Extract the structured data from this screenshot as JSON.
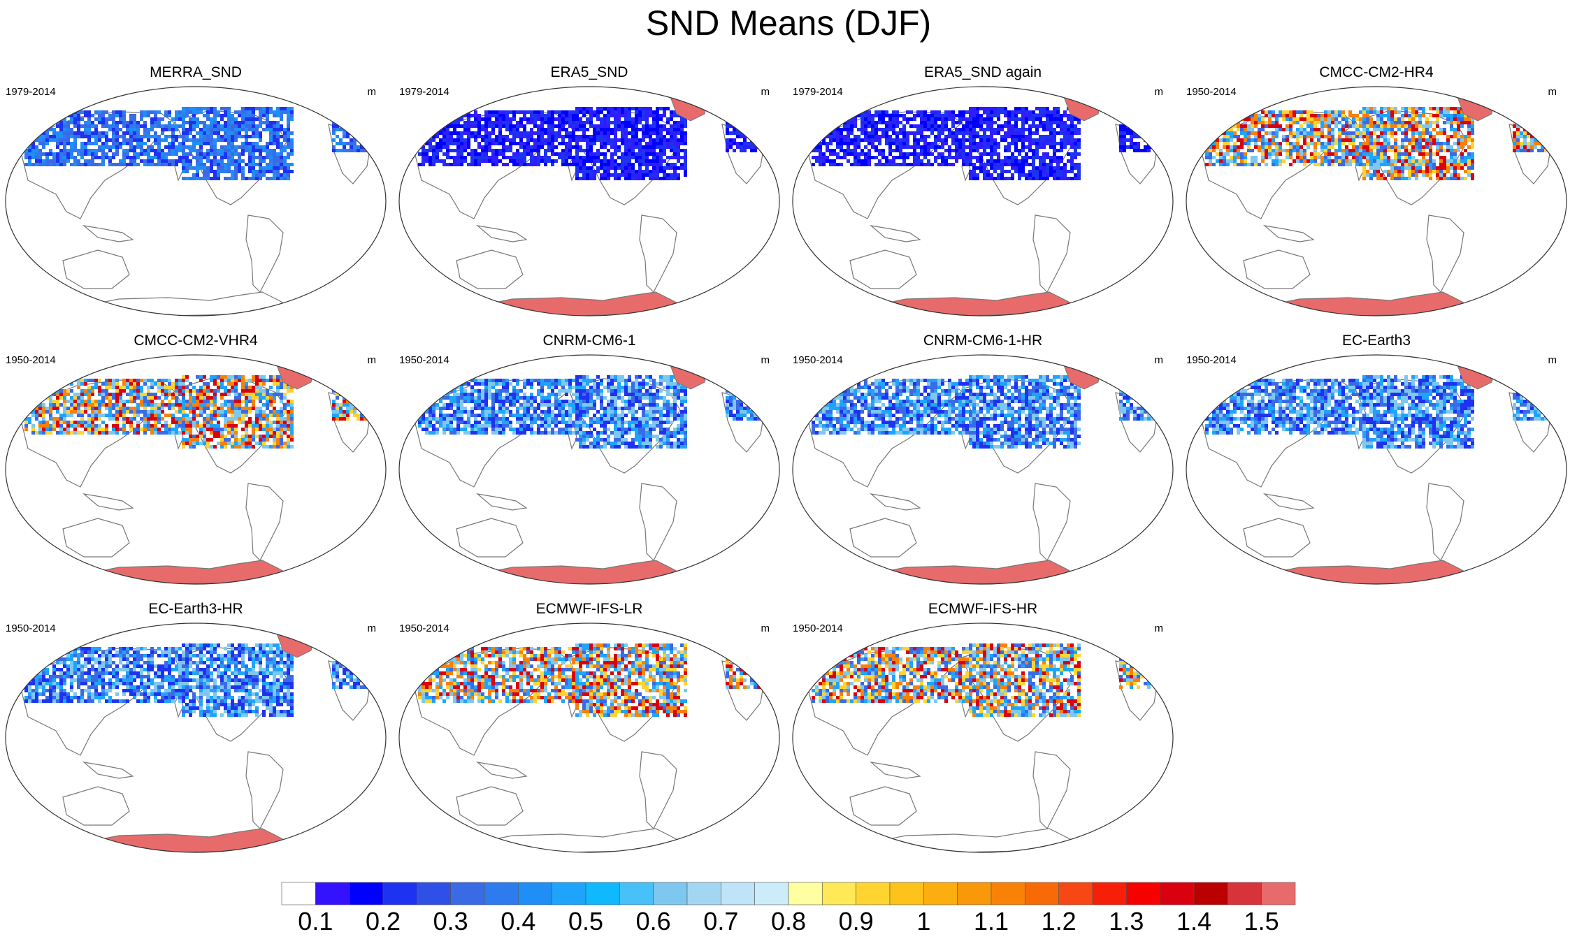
{
  "title": "SND Means (DJF)",
  "colors": {
    "land_outline": "#777777",
    "antarctica": "#e86b6b",
    "greenland": "#e86b6b"
  },
  "panels": [
    {
      "title": "MERRA_SND",
      "period": "1979-2014",
      "units": "m",
      "greenland": false,
      "antarctica": false,
      "snow": "low"
    },
    {
      "title": "ERA5_SND",
      "period": "1979-2014",
      "units": "m",
      "greenland": true,
      "antarctica": true,
      "snow": "verylow"
    },
    {
      "title": "ERA5_SND again",
      "period": "1979-2014",
      "units": "m",
      "greenland": true,
      "antarctica": true,
      "snow": "verylow"
    },
    {
      "title": "CMCC-CM2-HR4",
      "period": "1950-2014",
      "units": "m",
      "greenland": true,
      "antarctica": true,
      "snow": "high"
    },
    {
      "title": "CMCC-CM2-VHR4",
      "period": "1950-2014",
      "units": "m",
      "greenland": true,
      "antarctica": true,
      "snow": "high"
    },
    {
      "title": "CNRM-CM6-1",
      "period": "1950-2014",
      "units": "m",
      "greenland": true,
      "antarctica": true,
      "snow": "mid"
    },
    {
      "title": "CNRM-CM6-1-HR",
      "period": "1950-2014",
      "units": "m",
      "greenland": true,
      "antarctica": true,
      "snow": "mid"
    },
    {
      "title": "EC-Earth3",
      "period": "1950-2014",
      "units": "m",
      "greenland": true,
      "antarctica": true,
      "snow": "mid"
    },
    {
      "title": "EC-Earth3-HR",
      "period": "1950-2014",
      "units": "m",
      "greenland": true,
      "antarctica": true,
      "snow": "mid"
    },
    {
      "title": "ECMWF-IFS-LR",
      "period": "1950-2014",
      "units": "m",
      "greenland": false,
      "antarctica": false,
      "snow": "high"
    },
    {
      "title": "ECMWF-IFS-HR",
      "period": "1950-2014",
      "units": "m",
      "greenland": false,
      "antarctica": false,
      "snow": "high"
    }
  ],
  "colorbar": {
    "colors": [
      "#ffffff",
      "#3412ff",
      "#0000ff",
      "#1e32f2",
      "#2f50e6",
      "#3a6be6",
      "#2e7bf0",
      "#1f8ff7",
      "#1ea5fb",
      "#10b9fd",
      "#47c1f8",
      "#7ec8f0",
      "#a3d6f2",
      "#bfe3f7",
      "#ccecf9",
      "#fffea0",
      "#ffe957",
      "#ffd431",
      "#fdc21b",
      "#fcad0f",
      "#f99808",
      "#f98108",
      "#f86a08",
      "#f64714",
      "#f81f09",
      "#f60000",
      "#d9000f",
      "#bb0000",
      "#d7333a",
      "#e86b6b"
    ],
    "labels": [
      "0.1",
      "0.2",
      "0.3",
      "0.4",
      "0.5",
      "0.6",
      "0.7",
      "0.8",
      "0.9",
      "1",
      "1.1",
      "1.2",
      "1.3",
      "1.4",
      "1.5"
    ]
  }
}
